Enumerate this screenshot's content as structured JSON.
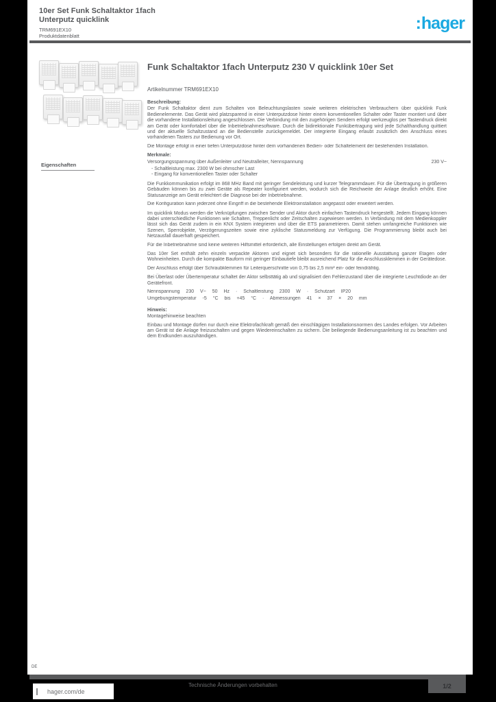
{
  "header": {
    "product_line1": "10er Set Funk Schaltaktor 1fach",
    "product_line2": "Unterputz quicklink",
    "ref": "TRM691EX10",
    "doc_type": "Produktdatenblatt"
  },
  "logo": {
    "text": "hager",
    "color": "#1ba9e1"
  },
  "main": {
    "title": "Funk Schaltaktor 1fach Unterputz 230 V quicklink 10er Set",
    "ref_line": "Artikelnummer TRM691EX10",
    "desc_label": "Beschreibung:",
    "paragraph_a": "Der Funk Schaltaktor dient zum Schalten von Beleuchtungslasten sowie weiteren elektrischen Verbrauchern über quicklink Funk Bedienelemente. Das Gerät wird platzsparend in einer Unterputzdose hinter einem konventionellen Schalter oder Taster montiert und über die vorhandene Installationsleitung angeschlossen. Die Verbindung mit den zugehörigen Sendern erfolgt werkzeuglos per Tastendruck direkt am Gerät oder komfortabel über die Inbetriebnahmesoftware. Durch die bidirektionale Funkübertragung wird jede Schalthandlung quittiert und der aktuelle Schaltzustand an die Bedienstelle zurückgemeldet. Der integrierte Eingang erlaubt zusätzlich den Anschluss eines vorhandenen Tasters zur Bedienung vor Ort.",
    "line_1": "Die Montage erfolgt in einer tiefen Unterputzdose hinter dem vorhandenen Bedien- oder Schaltelement der bestehenden Installation.",
    "features_label": "Merkmale:",
    "feature_row": {
      "label": "Versorgungsspannung über Außenleiter und Neutralleiter, Nennspannung",
      "value": "230 V~"
    },
    "bullet_1": "- Schaltleistung max. 2300 W bei ohmscher Last",
    "bullet_2": "- Eingang für konventionellen Taster oder Schalter",
    "paragraph_b": "Die Funkkommunikation erfolgt im 868 MHz Band mit geringer Sendeleistung und kurzer Telegrammdauer. Für die Übertragung in größeren Gebäuden können bis zu zwei Geräte als Repeater konfiguriert werden, wodurch sich die Reichweite der Anlage deutlich erhöht. Eine Statusanzeige am Gerät erleichtert die Diagnose bei der Inbetriebnahme.",
    "line_2": "Die Konfiguration kann jederzeit ohne Eingriff in die bestehende Elektroinstallation angepasst oder erweitert werden.",
    "paragraph_c": "Im quicklink Modus werden die Verknüpfungen zwischen Sender und Aktor durch einfachen Tastendruck hergestellt. Jedem Eingang können dabei unterschiedliche Funktionen wie Schalten, Treppenlicht oder Zeitschalten zugewiesen werden. In Verbindung mit dem Medienkoppler lässt sich das Gerät zudem in ein KNX System integrieren und über die ETS parametrieren. Damit stehen umfangreiche Funktionen wie Szenen, Sperrobjekte, Verzögerungszeiten sowie eine zyklische Statusmeldung zur Verfügung. Die Programmierung bleibt auch bei Netzausfall dauerhaft gespeichert.",
    "line_3": "Für die Inbetriebnahme sind keine weiteren Hilfsmittel erforderlich, alle Einstellungen erfolgen direkt am Gerät.",
    "paragraph_d": "Das 10er Set enthält zehn einzeln verpackte Aktoren und eignet sich besonders für die rationelle Ausstattung ganzer Etagen oder Wohneinheiten. Durch die kompakte Bauform mit geringer Einbautiefe bleibt ausreichend Platz für die Anschlussklemmen in der Gerätedose.",
    "line_4": "Der Anschluss erfolgt über Schraubklemmen für Leiterquerschnitte von 0,75 bis 2,5 mm² ein- oder feindrähtig.",
    "paragraph_e": "Bei Überlast oder Übertemperatur schaltet der Aktor selbsttätig ab und signalisiert den Fehlerzustand über die integrierte Leuchtdiode an der Gerätefront.",
    "spec_line_1": "Nennspannung 230 V~ 50 Hz · Schaltleistung 2300 W · Schutzart IP20",
    "spec_line_2": "Umgebungstemperatur -5 °C bis +45 °C · Abmessungen 41 × 37 × 20 mm",
    "note_label": "Hinweis:",
    "note_sub": "Montagehinweise beachten",
    "paragraph_f": "Einbau und Montage dürfen nur durch eine Elektrofachkraft gemäß den einschlägigen Installationsnormen des Landes erfolgen. Vor Arbeiten am Gerät ist die Anlage freizuschalten und gegen Wiedereinschalten zu sichern. Die beiliegende Bedienungsanleitung ist zu beachten und dem Endkunden auszuhändigen."
  },
  "sidebar": {
    "label": "Eigenschaften"
  },
  "footer": {
    "region": "DE",
    "website": "hager.com/de",
    "center_note": "Technische Änderungen vorbehalten",
    "page_indicator": "1/2"
  }
}
